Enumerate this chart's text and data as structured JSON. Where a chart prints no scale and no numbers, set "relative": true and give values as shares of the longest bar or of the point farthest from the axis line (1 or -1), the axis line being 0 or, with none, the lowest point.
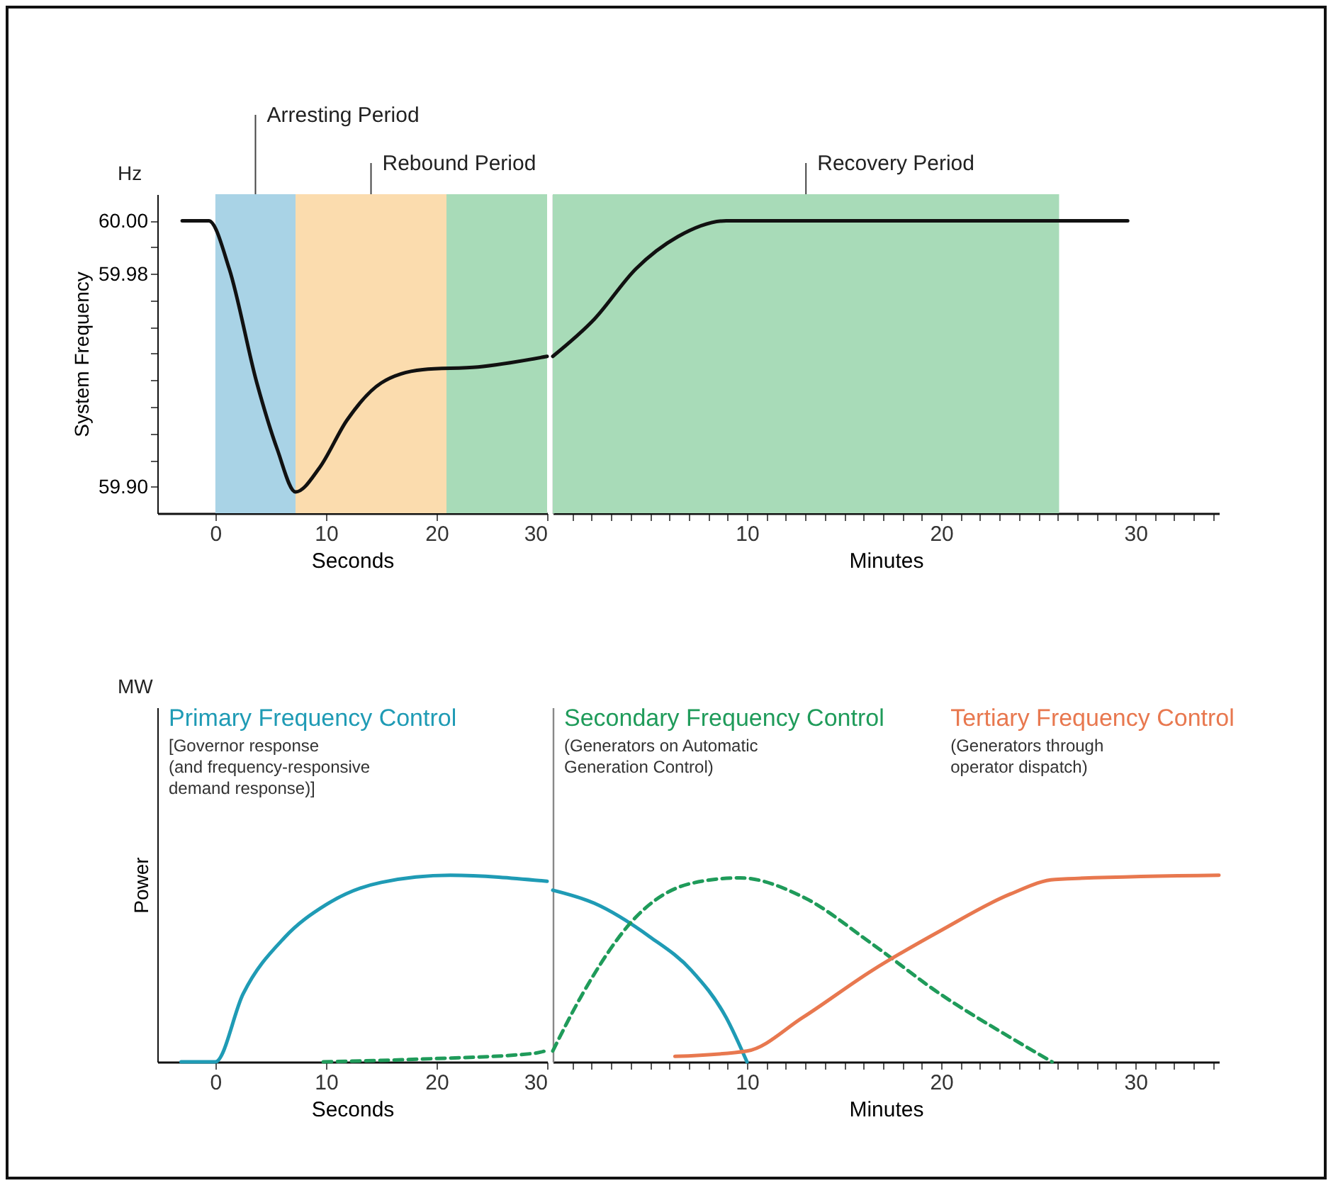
{
  "chart_data": [
    {
      "type": "line",
      "ylabel": "System Frequency",
      "xlabel": "Seconds",
      "x": [
        -3,
        -0.6,
        1.25,
        3.75,
        5.6,
        7.25,
        9.4,
        11.9,
        15,
        18.75,
        23.75,
        30
      ],
      "series": [
        {
          "color": "#111111",
          "values": [
            60,
            60,
            59.982,
            59.939,
            59.914,
            59.898,
            59.907,
            59.925,
            59.939,
            59.944,
            59.945,
            59.949
          ]
        }
      ],
      "xlim": [
        -5.25,
        30
      ],
      "xticks": [
        0,
        10,
        20,
        30
      ],
      "ylim": [
        59.89,
        60.01
      ],
      "yticks": [
        {
          "value": 59.9,
          "label": "59.90"
        },
        {
          "value": 59.91,
          "label": null
        },
        {
          "value": 59.92,
          "label": null
        },
        {
          "value": 59.93,
          "label": null
        },
        {
          "value": 59.94,
          "label": null
        },
        {
          "value": 59.95,
          "label": null
        },
        {
          "value": 59.96,
          "label": null
        },
        {
          "value": 59.97,
          "label": null
        },
        59.98,
        {
          "value": 59.99,
          "label": null
        },
        {
          "value": 60,
          "label": "60.00"
        }
      ],
      "bands": [
        {
          "axis": "x",
          "from": 0,
          "to": 7.25,
          "label": "Arresting Period",
          "color": "#a9d3e6"
        },
        {
          "axis": "x",
          "from": 7.25,
          "to": 20.9,
          "label": "Rebound Period",
          "color": "#fbdcae"
        },
        {
          "axis": "x",
          "from": 20.9,
          "to": 30,
          "color": "#a8dbb8"
        }
      ],
      "annotations": [
        "Hz"
      ],
      "grid": false,
      "legend": false
    },
    {
      "type": "line",
      "xlabel": "Minutes",
      "x": [
        0,
        2.14,
        4.29,
        6.43,
        8.93,
        29.6
      ],
      "series": [
        {
          "color": "#111111",
          "values": [
            59.949,
            59.963,
            59.982,
            59.994,
            60,
            60
          ]
        }
      ],
      "xlim": [
        0,
        34.3
      ],
      "xticks": [
        {
          "value": 1,
          "label": null
        },
        {
          "value": 2,
          "label": null
        },
        {
          "value": 3,
          "label": null
        },
        {
          "value": 4,
          "label": null
        },
        {
          "value": 5,
          "label": null
        },
        {
          "value": 6,
          "label": null
        },
        {
          "value": 7,
          "label": null
        },
        {
          "value": 8,
          "label": null
        },
        {
          "value": 9,
          "label": null
        },
        10,
        {
          "value": 11,
          "label": null
        },
        {
          "value": 12,
          "label": null
        },
        {
          "value": 13,
          "label": null
        },
        {
          "value": 14,
          "label": null
        },
        {
          "value": 15,
          "label": null
        },
        {
          "value": 16,
          "label": null
        },
        {
          "value": 17,
          "label": null
        },
        {
          "value": 18,
          "label": null
        },
        {
          "value": 19,
          "label": null
        },
        20,
        {
          "value": 21,
          "label": null
        },
        {
          "value": 22,
          "label": null
        },
        {
          "value": 23,
          "label": null
        },
        {
          "value": 24,
          "label": null
        },
        {
          "value": 25,
          "label": null
        },
        {
          "value": 26,
          "label": null
        },
        {
          "value": 27,
          "label": null
        },
        {
          "value": 28,
          "label": null
        },
        {
          "value": 29,
          "label": null
        },
        30,
        {
          "value": 31,
          "label": null
        },
        {
          "value": 32,
          "label": null
        },
        {
          "value": 33,
          "label": null
        },
        {
          "value": 34,
          "label": null
        }
      ],
      "ylim": [
        59.89,
        60.01
      ],
      "tick_labels": "x",
      "bands": [
        {
          "axis": "x",
          "from": 0,
          "to": 26.07,
          "label": "Recovery Period",
          "color": "#a8dbb8"
        }
      ],
      "grid": false,
      "legend": false
    },
    {
      "type": "line",
      "ylabel": "Power",
      "xlabel": "Seconds",
      "relative": true,
      "series": [
        {
          "name": "Primary Frequency Control",
          "color": "#1f9bb5",
          "x": [
            -3.1,
            0,
            2.5,
            6.25,
            10,
            15,
            21.25,
            30
          ],
          "values": [
            0,
            0,
            0.363,
            0.666,
            0.842,
            0.962,
            1,
            0.968
          ]
        },
        {
          "color": "#1f9b5a",
          "line_style": "dashed",
          "x": [
            9.75,
            18.75,
            28.75,
            30
          ],
          "values": [
            0,
            0.015,
            0.045,
            0.061
          ]
        }
      ],
      "xlim": [
        -5.25,
        30
      ],
      "xticks": [
        0,
        10,
        20,
        30
      ],
      "annotations": [
        "MW",
        "[Governor response\n(and frequency-responsive\ndemand response)]"
      ],
      "grid": false,
      "legend": false
    },
    {
      "type": "line",
      "xlabel": "Minutes",
      "relative": true,
      "tick_labels": "x",
      "series": [
        {
          "color": "#1f9bb5",
          "x": [
            0,
            2.14,
            5,
            7.14,
            8.93,
            10
          ],
          "values": [
            0.92,
            0.85,
            0.67,
            0.49,
            0.237,
            0
          ]
        },
        {
          "name": "Secondary Frequency Control",
          "color": "#1f9b5a",
          "line_style": "dashed",
          "x": [
            0,
            1.43,
            4.29,
            7.14,
            9.64,
            12.86,
            16.43,
            20,
            23.57,
            25.71
          ],
          "values": [
            0.058,
            0.345,
            0.777,
            0.957,
            0.986,
            0.885,
            0.633,
            0.36,
            0.13,
            0
          ]
        },
        {
          "name": "Tertiary Frequency Control",
          "color": "#e8784f",
          "x": [
            6.29,
            10,
            12.86,
            16.43,
            20,
            23.57,
            25.86,
            34.3
          ],
          "values": [
            0.029,
            0.058,
            0.237,
            0.489,
            0.705,
            0.9,
            0.978,
            1
          ]
        }
      ],
      "xlim": [
        0,
        34.3
      ],
      "xticks": [
        {
          "value": 1,
          "label": null
        },
        {
          "value": 2,
          "label": null
        },
        {
          "value": 3,
          "label": null
        },
        {
          "value": 4,
          "label": null
        },
        {
          "value": 5,
          "label": null
        },
        {
          "value": 6,
          "label": null
        },
        {
          "value": 7,
          "label": null
        },
        {
          "value": 8,
          "label": null
        },
        {
          "value": 9,
          "label": null
        },
        10,
        {
          "value": 11,
          "label": null
        },
        {
          "value": 12,
          "label": null
        },
        {
          "value": 13,
          "label": null
        },
        {
          "value": 14,
          "label": null
        },
        {
          "value": 15,
          "label": null
        },
        {
          "value": 16,
          "label": null
        },
        {
          "value": 17,
          "label": null
        },
        {
          "value": 18,
          "label": null
        },
        {
          "value": 19,
          "label": null
        },
        20,
        {
          "value": 21,
          "label": null
        },
        {
          "value": 22,
          "label": null
        },
        {
          "value": 23,
          "label": null
        },
        {
          "value": 24,
          "label": null
        },
        {
          "value": 25,
          "label": null
        },
        {
          "value": 26,
          "label": null
        },
        {
          "value": 27,
          "label": null
        },
        {
          "value": 28,
          "label": null
        },
        {
          "value": 29,
          "label": null
        },
        30,
        {
          "value": 31,
          "label": null
        },
        {
          "value": 32,
          "label": null
        },
        {
          "value": 33,
          "label": null
        },
        {
          "value": 34,
          "label": null
        }
      ],
      "annotations": [
        "(Generators on Automatic\nGeneration Control)",
        "(Generators through\noperator dispatch)"
      ],
      "grid": false,
      "legend": false
    }
  ]
}
